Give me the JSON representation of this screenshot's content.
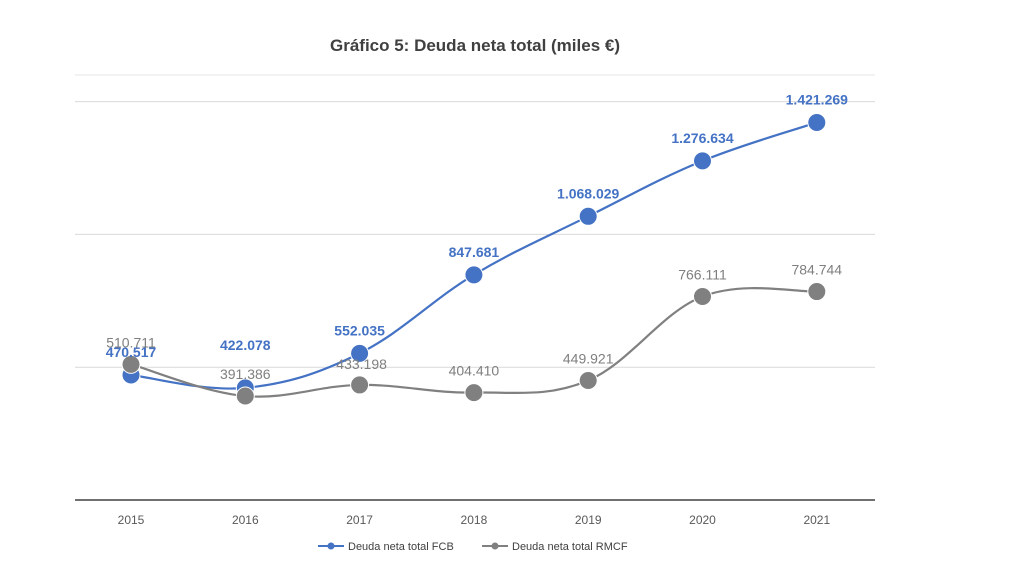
{
  "chart_data": {
    "type": "line",
    "title": "Gráfico 5: Deuda neta total (miles €)",
    "xlabel": "",
    "ylabel": "",
    "categories": [
      "2015",
      "2016",
      "2017",
      "2018",
      "2019",
      "2020",
      "2021"
    ],
    "ylim": [
      0,
      1600000
    ],
    "grid": true,
    "legend_position": "bottom",
    "series": [
      {
        "name": "Deuda neta total FCB",
        "color": "#4472c4",
        "values": [
          470517,
          422078,
          552035,
          847681,
          1068029,
          1276634,
          1421269
        ],
        "labels": [
          "470.517",
          "422.078",
          "552.035",
          "847.681",
          "1.068.029",
          "1.276.634",
          "1.421.269"
        ]
      },
      {
        "name": "Deuda neta total RMCF",
        "color": "#808080",
        "values": [
          510711,
          391386,
          433198,
          404410,
          449921,
          766111,
          784744
        ],
        "labels": [
          "510.711",
          "391.386",
          "433.198",
          "404.410",
          "449.921",
          "766.111",
          "784.744"
        ]
      }
    ]
  }
}
